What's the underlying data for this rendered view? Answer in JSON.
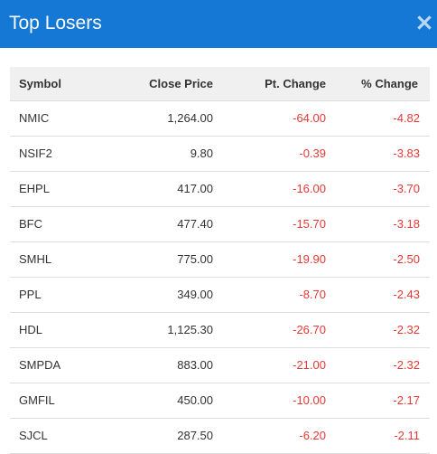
{
  "modal": {
    "title": "Top Losers",
    "close_icon": "close-icon",
    "header_color": "#1478d4",
    "negative_color": "#e53935"
  },
  "table": {
    "headers": {
      "symbol": "Symbol",
      "close_price": "Close Price",
      "pt_change": "Pt. Change",
      "pct_change": "% Change"
    },
    "rows": [
      {
        "symbol": "NMIC",
        "close_price": "1,264.00",
        "pt_change": "-64.00",
        "pct_change": "-4.82"
      },
      {
        "symbol": "NSIF2",
        "close_price": "9.80",
        "pt_change": "-0.39",
        "pct_change": "-3.83"
      },
      {
        "symbol": "EHPL",
        "close_price": "417.00",
        "pt_change": "-16.00",
        "pct_change": "-3.70"
      },
      {
        "symbol": "BFC",
        "close_price": "477.40",
        "pt_change": "-15.70",
        "pct_change": "-3.18"
      },
      {
        "symbol": "SMHL",
        "close_price": "775.00",
        "pt_change": "-19.90",
        "pct_change": "-2.50"
      },
      {
        "symbol": "PPL",
        "close_price": "349.00",
        "pt_change": "-8.70",
        "pct_change": "-2.43"
      },
      {
        "symbol": "HDL",
        "close_price": "1,125.30",
        "pt_change": "-26.70",
        "pct_change": "-2.32"
      },
      {
        "symbol": "SMPDA",
        "close_price": "883.00",
        "pt_change": "-21.00",
        "pct_change": "-2.32"
      },
      {
        "symbol": "GMFIL",
        "close_price": "450.00",
        "pt_change": "-10.00",
        "pct_change": "-2.17"
      },
      {
        "symbol": "SJCL",
        "close_price": "287.50",
        "pt_change": "-6.20",
        "pct_change": "-2.11"
      }
    ]
  }
}
